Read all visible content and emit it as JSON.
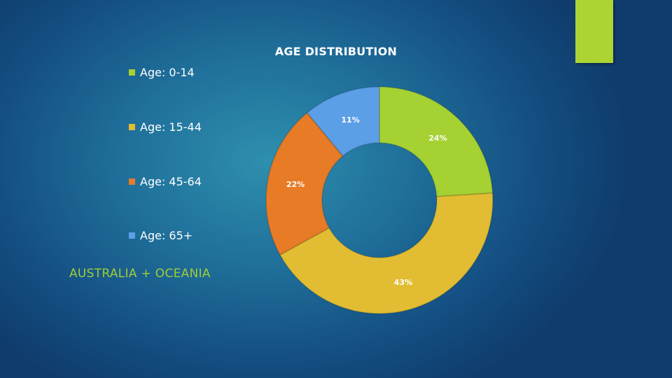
{
  "chart_data": {
    "type": "pie",
    "donut": true,
    "title": "AGE DISTRIBUTION",
    "categories": [
      "Age: 0-14",
      "Age: 15-44",
      "Age: 45-64",
      "Age: 65+"
    ],
    "values": [
      24,
      43,
      22,
      11
    ],
    "value_labels": [
      "24%",
      "43%",
      "22%",
      "11%"
    ],
    "unit": "%",
    "colors": [
      "#a6d133",
      "#e2bd33",
      "#e87b26",
      "#5b9fe6"
    ],
    "legend_position": "left"
  },
  "region_label": "AUSTRALIA + OCEANIA",
  "colors": {
    "accent_bar": "#acd433",
    "background": "#1f6f9a"
  }
}
